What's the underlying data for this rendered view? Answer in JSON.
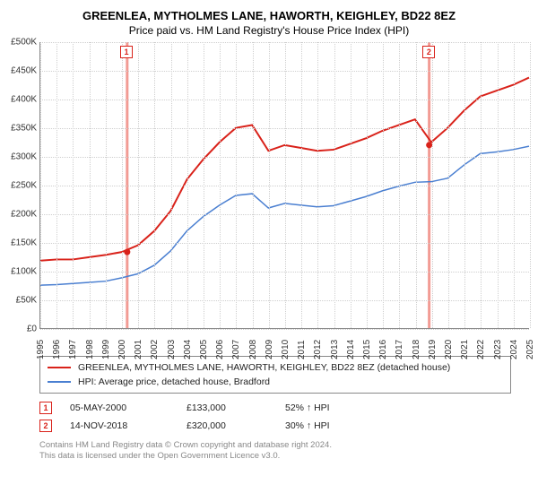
{
  "title": "GREENLEA, MYTHOLMES LANE, HAWORTH, KEIGHLEY, BD22 8EZ",
  "subtitle": "Price paid vs. HM Land Registry's House Price Index (HPI)",
  "chart": {
    "type": "line",
    "ylim": [
      0,
      500000
    ],
    "ytick_step": 50000,
    "y_prefix": "£",
    "y_suffixes": [
      "0",
      "50K",
      "100K",
      "150K",
      "200K",
      "250K",
      "300K",
      "350K",
      "400K",
      "450K",
      "500K"
    ],
    "x_years": [
      1995,
      1996,
      1997,
      1998,
      1999,
      2000,
      2001,
      2002,
      2003,
      2004,
      2005,
      2006,
      2007,
      2008,
      2009,
      2010,
      2011,
      2012,
      2013,
      2014,
      2015,
      2016,
      2017,
      2018,
      2019,
      2020,
      2021,
      2022,
      2023,
      2024,
      2025
    ],
    "grid_color": "#cfcfcf",
    "background_color": "#ffffff",
    "series": [
      {
        "name": "GREENLEA, MYTHOLMES LANE, HAWORTH, KEIGHLEY, BD22 8EZ (detached house)",
        "color": "#d9221a",
        "width": 2,
        "values_by_year": {
          "1995": 118000,
          "1996": 120000,
          "1997": 120000,
          "1998": 124000,
          "1999": 128000,
          "2000": 133000,
          "2001": 145000,
          "2002": 170000,
          "2003": 205000,
          "2004": 260000,
          "2005": 295000,
          "2006": 325000,
          "2007": 350000,
          "2008": 355000,
          "2009": 310000,
          "2010": 320000,
          "2011": 315000,
          "2012": 310000,
          "2013": 312000,
          "2014": 322000,
          "2015": 332000,
          "2016": 345000,
          "2017": 355000,
          "2018": 365000,
          "2019": 325000,
          "2020": 350000,
          "2021": 380000,
          "2022": 405000,
          "2023": 415000,
          "2024": 425000,
          "2025": 438000
        }
      },
      {
        "name": "HPI: Average price, detached house, Bradford",
        "color": "#4a7fd1",
        "width": 1.5,
        "values_by_year": {
          "1995": 75000,
          "1996": 76000,
          "1997": 78000,
          "1998": 80000,
          "1999": 82000,
          "2000": 88000,
          "2001": 95000,
          "2002": 110000,
          "2003": 135000,
          "2004": 170000,
          "2005": 195000,
          "2006": 215000,
          "2007": 232000,
          "2008": 235000,
          "2009": 210000,
          "2010": 218000,
          "2011": 215000,
          "2012": 212000,
          "2013": 214000,
          "2014": 222000,
          "2015": 230000,
          "2016": 240000,
          "2017": 248000,
          "2018": 255000,
          "2019": 256000,
          "2020": 262000,
          "2021": 285000,
          "2022": 305000,
          "2023": 308000,
          "2024": 312000,
          "2025": 318000
        }
      }
    ],
    "sale_markers": [
      {
        "n": 1,
        "year": 2000.33,
        "value": 133000,
        "marker_top": true,
        "spike_top": true
      },
      {
        "n": 2,
        "year": 2018.87,
        "value": 320000,
        "marker_top": true,
        "spike_top": true
      }
    ],
    "spike_color": "#f29b94"
  },
  "legend": [
    {
      "color": "#d9221a",
      "label": "GREENLEA, MYTHOLMES LANE, HAWORTH, KEIGHLEY, BD22 8EZ (detached house)"
    },
    {
      "color": "#4a7fd1",
      "label": "HPI: Average price, detached house, Bradford"
    }
  ],
  "sales": [
    {
      "n": "1",
      "date": "05-MAY-2000",
      "price": "£133,000",
      "diff": "52% ↑ HPI"
    },
    {
      "n": "2",
      "date": "14-NOV-2018",
      "price": "£320,000",
      "diff": "30% ↑ HPI"
    }
  ],
  "footer": {
    "line1": "Contains HM Land Registry data © Crown copyright and database right 2024.",
    "line2": "This data is licensed under the Open Government Licence v3.0."
  }
}
